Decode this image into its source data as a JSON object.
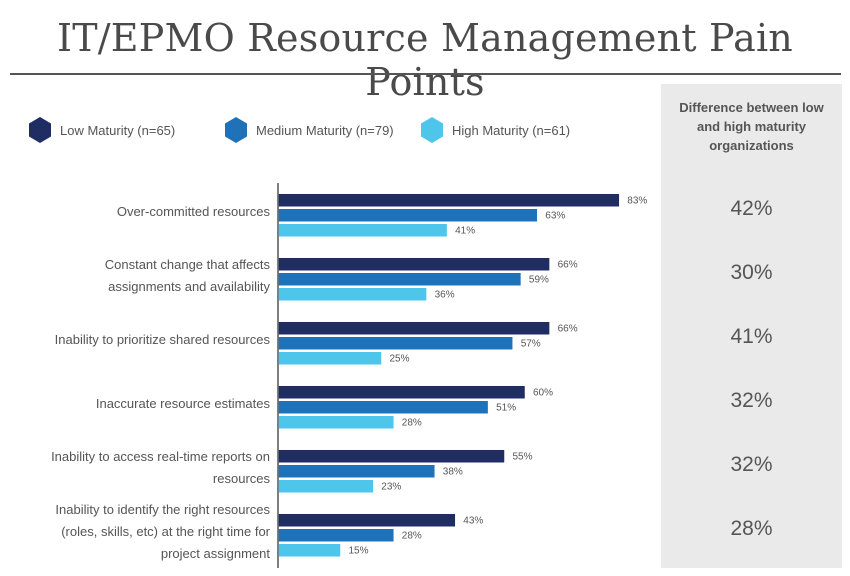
{
  "title": "IT/EPMO Resource Management Pain Points",
  "colors": {
    "low": "#1f2d63",
    "medium": "#1f72b8",
    "high": "#4ec6ec",
    "panel": "#eaeaea",
    "text": "#555555"
  },
  "legend": [
    {
      "label": "Low Maturity (n=65)",
      "color_key": "low"
    },
    {
      "label": "Medium Maturity (n=79)",
      "color_key": "medium"
    },
    {
      "label": "High Maturity (n=61)",
      "color_key": "high"
    }
  ],
  "difference_panel": {
    "header_lines": [
      "Difference between low",
      "and high maturity",
      "organizations"
    ],
    "values": [
      "42%",
      "30%",
      "41%",
      "32%",
      "32%",
      "28%"
    ]
  },
  "chart_data": {
    "type": "bar",
    "orientation": "horizontal",
    "title": "IT/EPMO Resource Management Pain Points",
    "categories": [
      [
        "Over-committed resources"
      ],
      [
        "Constant change that affects",
        "assignments and availability"
      ],
      [
        "Inability to prioritize shared resources"
      ],
      [
        "Inaccurate resource estimates"
      ],
      [
        "Inability to access real-time reports on",
        "resources"
      ],
      [
        "Inability to identify the right resources",
        "(roles, skills, etc) at the right time for",
        "project assignment"
      ]
    ],
    "series": [
      {
        "name": "Low Maturity (n=65)",
        "color_key": "low",
        "values": [
          83,
          66,
          66,
          60,
          55,
          43
        ]
      },
      {
        "name": "Medium Maturity (n=79)",
        "color_key": "medium",
        "values": [
          63,
          59,
          57,
          51,
          38,
          28
        ]
      },
      {
        "name": "High Maturity (n=61)",
        "color_key": "high",
        "values": [
          41,
          36,
          25,
          28,
          23,
          15
        ]
      }
    ],
    "value_suffix": "%",
    "xlim": [
      0,
      100
    ],
    "grid": false,
    "legend_position": "top"
  }
}
